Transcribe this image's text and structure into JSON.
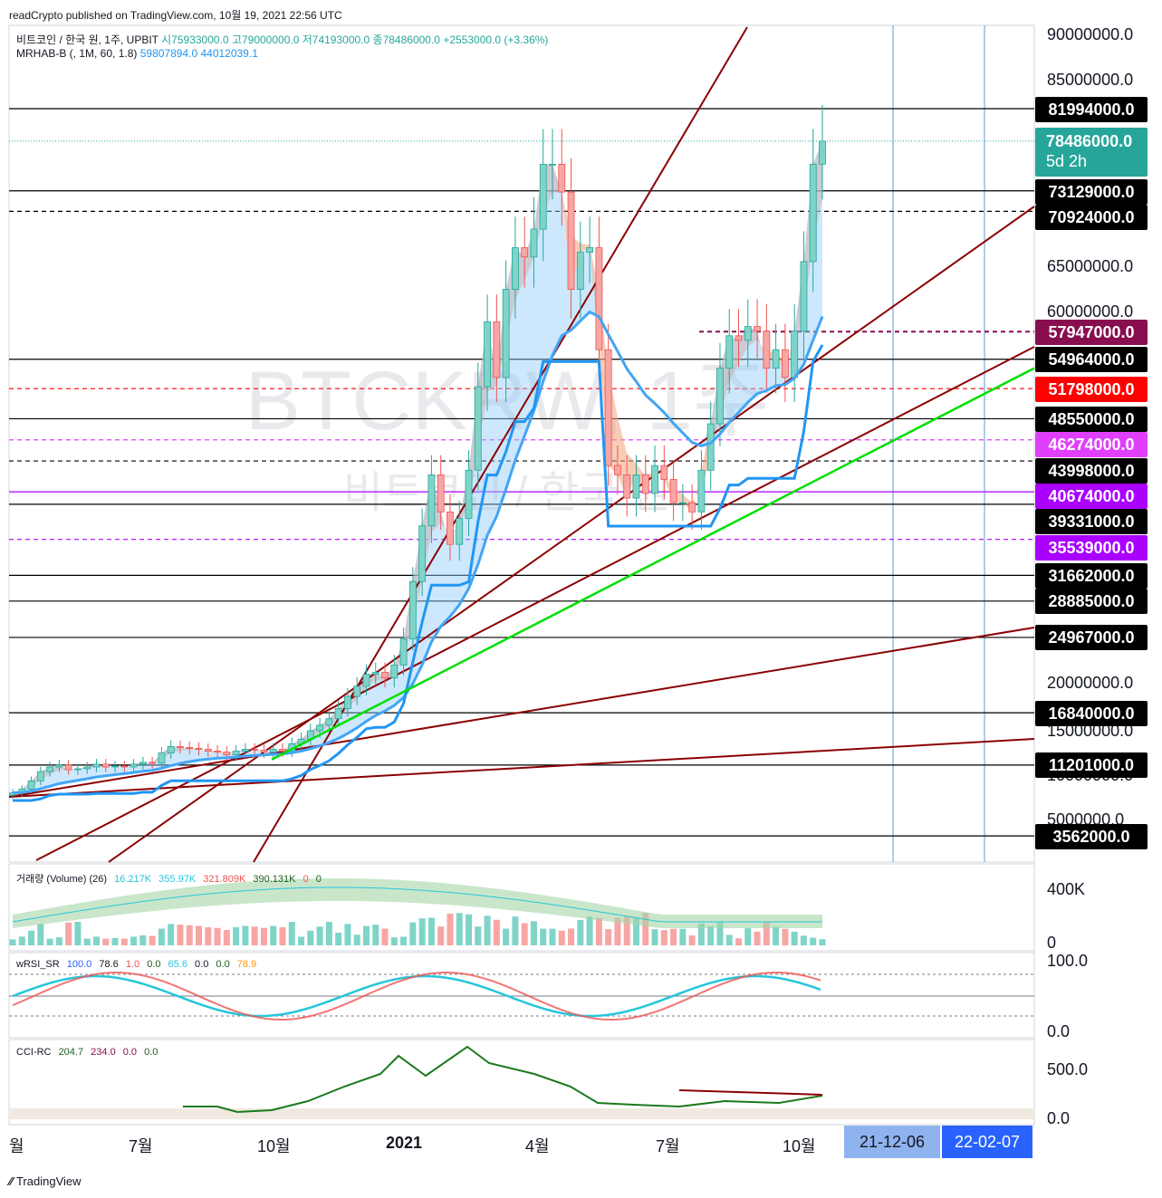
{
  "publish_line": "readCrypto published on TradingView.com, 10월 19, 2021 22:56 UTC",
  "symbol_line": {
    "name": "비트코인 / 한국 원, 1주, UPBIT",
    "open": "시75933000.0",
    "high": "고79000000.0",
    "low": "저74193000.0",
    "close": "종78486000.0",
    "change": "+2553000.0 (+3.36%)"
  },
  "indicator_line": {
    "name": "MRHAB-B (, 1M, 60, 1.8)",
    "v1": "59807894.0",
    "v2": "44012039.1"
  },
  "watermark": {
    "ticker": "BTCKRW, 1주",
    "name": "비트코인 / 한국 원"
  },
  "price_axis_ticks": [
    "90000000.0",
    "85000000.0",
    "65000000.0",
    "60000000.0",
    "20000000.0",
    "15000000.0",
    "10000000.0",
    "5000000.0"
  ],
  "price_labels": [
    {
      "text": "81994000.0",
      "bg": "#000000",
      "fg": "#ffffff"
    },
    {
      "text": "78486000.0",
      "bg": "#26a69a",
      "fg": "#ffffff",
      "sub": "5d 2h"
    },
    {
      "text": "73129000.0",
      "bg": "#000000",
      "fg": "#ffffff"
    },
    {
      "text": "70924000.0",
      "bg": "#000000",
      "fg": "#ffffff"
    },
    {
      "text": "57947000.0",
      "bg": "#880e4f",
      "fg": "#ffffff"
    },
    {
      "text": "54964000.0",
      "bg": "#000000",
      "fg": "#ffffff"
    },
    {
      "text": "51798000.0",
      "bg": "#ff0000",
      "fg": "#ffffff"
    },
    {
      "text": "48550000.0",
      "bg": "#000000",
      "fg": "#ffffff"
    },
    {
      "text": "46274000.0",
      "bg": "#e040fb",
      "fg": "#ffffff"
    },
    {
      "text": "43998000.0",
      "bg": "#000000",
      "fg": "#ffffff"
    },
    {
      "text": "40674000.0",
      "bg": "#aa00ff",
      "fg": "#ffffff"
    },
    {
      "text": "39331000.0",
      "bg": "#000000",
      "fg": "#ffffff"
    },
    {
      "text": "35539000.0",
      "bg": "#aa00ff",
      "fg": "#ffffff"
    },
    {
      "text": "31662000.0",
      "bg": "#000000",
      "fg": "#ffffff"
    },
    {
      "text": "28885000.0",
      "bg": "#000000",
      "fg": "#ffffff"
    },
    {
      "text": "24967000.0",
      "bg": "#000000",
      "fg": "#ffffff"
    },
    {
      "text": "16840000.0",
      "bg": "#000000",
      "fg": "#ffffff"
    },
    {
      "text": "11201000.0",
      "bg": "#000000",
      "fg": "#ffffff"
    },
    {
      "text": "3562000.0",
      "bg": "#000000",
      "fg": "#ffffff"
    }
  ],
  "volume_panel": {
    "name": "거래량 (Volume) (26)",
    "v1": "16.217K",
    "v2": "355.97K",
    "v3": "321.809K",
    "v4": "390.131K",
    "v5": "0",
    "v6": "0",
    "ticks": [
      "400K",
      "0"
    ]
  },
  "wrsi_panel": {
    "name": "wRSI_SR",
    "v1": "100.0",
    "v2": "78.6",
    "v3": "1.0",
    "v4": "0.0",
    "v5": "65.6",
    "v6": "0.0",
    "v7": "0.0",
    "v8": "78.9",
    "ticks": [
      "100.0",
      "0.0"
    ]
  },
  "cci_panel": {
    "name": "CCI-RC",
    "v1": "204.7",
    "v2": "234.0",
    "v3": "0.0",
    "v4": "0.0",
    "ticks": [
      "500.0",
      "0.0"
    ]
  },
  "time_axis": [
    "월",
    "7월",
    "10월",
    "2021",
    "4월",
    "7월",
    "10월"
  ],
  "time_boxes": [
    "21-12-06",
    "22-02-07"
  ],
  "footer": "TradingView",
  "chart_data": {
    "type": "candlestick",
    "interval": "1주",
    "exchange": "UPBIT",
    "symbol": "BTCKRW",
    "horizontal_levels": [
      81994000,
      73129000,
      70924000,
      57947000,
      54964000,
      51798000,
      48550000,
      46274000,
      43998000,
      40674000,
      39331000,
      35539000,
      31662000,
      28885000,
      24967000,
      16840000,
      11201000,
      3562000
    ],
    "last_candle": {
      "open": 75933000,
      "high": 79000000,
      "low": 74193000,
      "close": 78486000,
      "change": 2553000,
      "change_pct": 3.36
    },
    "weekly_closes_approx": [
      8200000,
      8600000,
      9500000,
      10500000,
      11000000,
      11200000,
      10700000,
      10800000,
      11000000,
      11300000,
      11000000,
      11100000,
      11000000,
      11300000,
      11500000,
      11400000,
      12500000,
      13200000,
      13100000,
      13000000,
      12900000,
      12700000,
      12600000,
      12300000,
      12700000,
      12900000,
      12800000,
      12600000,
      12900000,
      12700000,
      13500000,
      14000000,
      14900000,
      15500000,
      16200000,
      17300000,
      18600000,
      19700000,
      21000000,
      21200000,
      20600000,
      22000000,
      24800000,
      31000000,
      37000000,
      42500000,
      38500000,
      35000000,
      37800000,
      43000000,
      52000000,
      59000000,
      53000000,
      62500000,
      67000000,
      66000000,
      69000000,
      76000000,
      76000000,
      73000000,
      62500000,
      66500000,
      67000000,
      56000000,
      43500000,
      42500000,
      40000000,
      42500000,
      40500000,
      43500000,
      42000000,
      39500000,
      39500000,
      38500000,
      43000000,
      48000000,
      54000000,
      57500000,
      57000000,
      58500000,
      58000000,
      54000000,
      56000000,
      53000000,
      58000000,
      65500000,
      76000000,
      78486000
    ]
  }
}
